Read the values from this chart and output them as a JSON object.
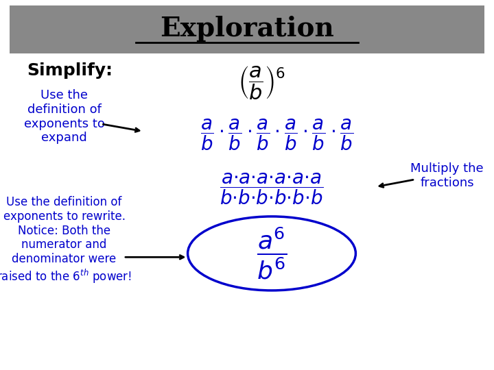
{
  "title": "Exploration",
  "title_color": "#000000",
  "header_bg": "#888888",
  "bg_color": "#ffffff",
  "blue": "#0000CC",
  "black": "#000000",
  "simplify_text": "Simplify:",
  "label1": "Use the\ndefinition of\nexponents to\nexpand",
  "label2": "Use the definition of\nexponents to rewrite.\nNotice: Both the\nnumerator and\ndenominator were\nraised to the 6th power!",
  "label3": "Multiply the\nfractions"
}
